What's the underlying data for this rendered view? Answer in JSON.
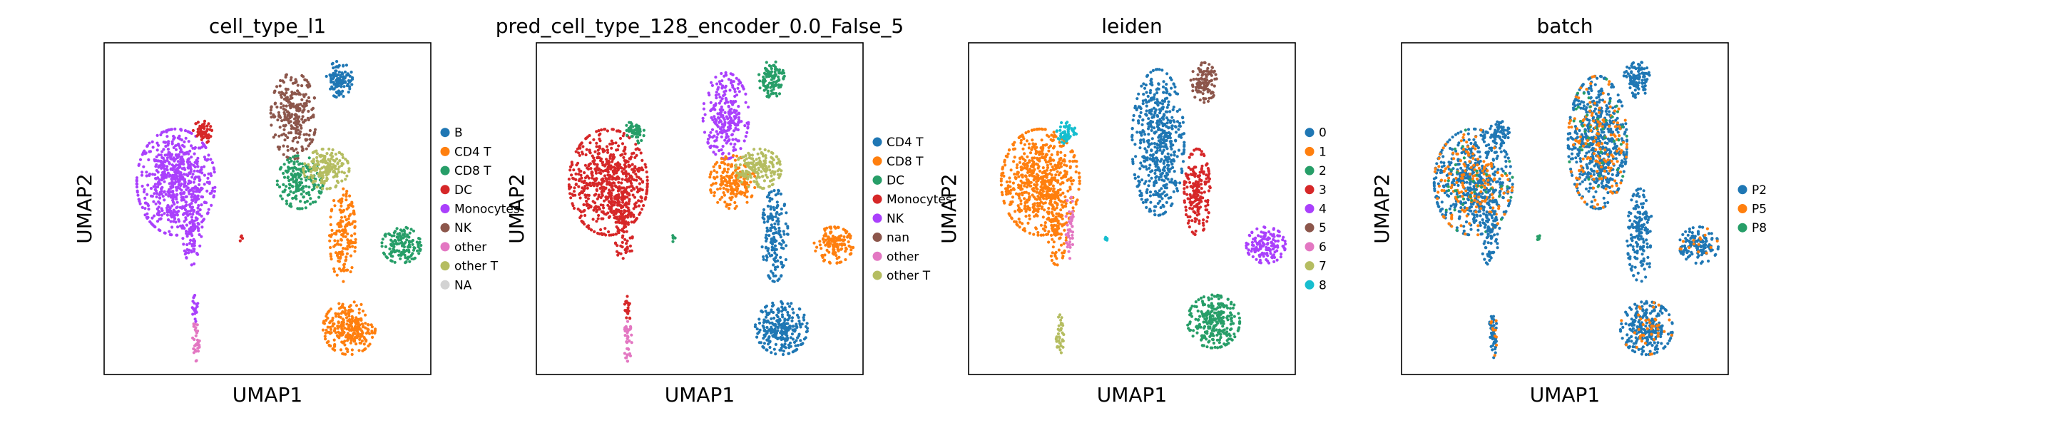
{
  "chart_data": [
    {
      "type": "scatter",
      "title": "cell_type_l1",
      "xlabel": "UMAP1",
      "ylabel": "UMAP2",
      "legend_placement": "right",
      "grid": false,
      "categories": [
        {
          "label": "B",
          "color": "#1f77b4"
        },
        {
          "label": "CD4 T",
          "color": "#ff7f0e"
        },
        {
          "label": "CD8 T",
          "color": "#279e68"
        },
        {
          "label": "DC",
          "color": "#d62728"
        },
        {
          "label": "Monocytes",
          "color": "#aa40fc"
        },
        {
          "label": "NK",
          "color": "#8c564b"
        },
        {
          "label": "other",
          "color": "#e377c2"
        },
        {
          "label": "other T",
          "color": "#b5bd61"
        },
        {
          "label": "NA",
          "color": "#d3d3d3"
        }
      ],
      "clusters": [
        {
          "c": 4,
          "x": 0.22,
          "y": 0.58,
          "rx": 0.12,
          "ry": 0.16,
          "n": 650
        },
        {
          "c": 4,
          "x": 0.27,
          "y": 0.44,
          "rx": 0.03,
          "ry": 0.11,
          "n": 90
        },
        {
          "c": 3,
          "x": 0.3,
          "y": 0.73,
          "rx": 0.03,
          "ry": 0.035,
          "n": 55
        },
        {
          "c": 5,
          "x": 0.58,
          "y": 0.78,
          "rx": 0.07,
          "ry": 0.13,
          "n": 260
        },
        {
          "c": 2,
          "x": 0.6,
          "y": 0.58,
          "rx": 0.07,
          "ry": 0.08,
          "n": 190
        },
        {
          "c": 7,
          "x": 0.68,
          "y": 0.62,
          "rx": 0.07,
          "ry": 0.06,
          "n": 170
        },
        {
          "c": 1,
          "x": 0.73,
          "y": 0.42,
          "rx": 0.04,
          "ry": 0.14,
          "n": 160
        },
        {
          "c": 1,
          "x": 0.75,
          "y": 0.14,
          "rx": 0.08,
          "ry": 0.08,
          "n": 260
        },
        {
          "c": 0,
          "x": 0.72,
          "y": 0.89,
          "rx": 0.04,
          "ry": 0.055,
          "n": 110
        },
        {
          "c": 2,
          "x": 0.91,
          "y": 0.39,
          "rx": 0.06,
          "ry": 0.055,
          "n": 140
        },
        {
          "c": 6,
          "x": 0.28,
          "y": 0.1,
          "rx": 0.012,
          "ry": 0.06,
          "n": 35
        },
        {
          "c": 4,
          "x": 0.28,
          "y": 0.2,
          "rx": 0.01,
          "ry": 0.04,
          "n": 20
        },
        {
          "c": 3,
          "x": 0.42,
          "y": 0.41,
          "rx": 0.005,
          "ry": 0.01,
          "n": 6
        }
      ]
    },
    {
      "type": "scatter",
      "title": "pred_cell_type_128_encoder_0.0_False_5",
      "xlabel": "UMAP1",
      "ylabel": "UMAP2",
      "legend_placement": "right",
      "grid": false,
      "categories": [
        {
          "label": "CD4 T",
          "color": "#1f77b4"
        },
        {
          "label": "CD8 T",
          "color": "#ff7f0e"
        },
        {
          "label": "DC",
          "color": "#279e68"
        },
        {
          "label": "Monocytes",
          "color": "#d62728"
        },
        {
          "label": "NK",
          "color": "#aa40fc"
        },
        {
          "label": "nan",
          "color": "#8c564b"
        },
        {
          "label": "other",
          "color": "#e377c2"
        },
        {
          "label": "other T",
          "color": "#b5bd61"
        }
      ],
      "clusters": [
        {
          "c": 3,
          "x": 0.22,
          "y": 0.58,
          "rx": 0.12,
          "ry": 0.16,
          "n": 650
        },
        {
          "c": 3,
          "x": 0.27,
          "y": 0.44,
          "rx": 0.03,
          "ry": 0.11,
          "n": 90
        },
        {
          "c": 2,
          "x": 0.3,
          "y": 0.73,
          "rx": 0.03,
          "ry": 0.035,
          "n": 55
        },
        {
          "c": 4,
          "x": 0.58,
          "y": 0.78,
          "rx": 0.07,
          "ry": 0.13,
          "n": 260
        },
        {
          "c": 1,
          "x": 0.6,
          "y": 0.58,
          "rx": 0.07,
          "ry": 0.08,
          "n": 190
        },
        {
          "c": 7,
          "x": 0.68,
          "y": 0.62,
          "rx": 0.07,
          "ry": 0.06,
          "n": 170
        },
        {
          "c": 0,
          "x": 0.73,
          "y": 0.42,
          "rx": 0.04,
          "ry": 0.14,
          "n": 160
        },
        {
          "c": 0,
          "x": 0.75,
          "y": 0.14,
          "rx": 0.08,
          "ry": 0.08,
          "n": 260
        },
        {
          "c": 2,
          "x": 0.72,
          "y": 0.89,
          "rx": 0.04,
          "ry": 0.055,
          "n": 110
        },
        {
          "c": 1,
          "x": 0.91,
          "y": 0.39,
          "rx": 0.06,
          "ry": 0.055,
          "n": 140
        },
        {
          "c": 6,
          "x": 0.28,
          "y": 0.1,
          "rx": 0.012,
          "ry": 0.06,
          "n": 35
        },
        {
          "c": 3,
          "x": 0.28,
          "y": 0.2,
          "rx": 0.01,
          "ry": 0.04,
          "n": 20
        },
        {
          "c": 2,
          "x": 0.42,
          "y": 0.41,
          "rx": 0.005,
          "ry": 0.01,
          "n": 6
        }
      ]
    },
    {
      "type": "scatter",
      "title": "leiden",
      "xlabel": "UMAP1",
      "ylabel": "UMAP2",
      "legend_placement": "right",
      "grid": false,
      "categories": [
        {
          "label": "0",
          "color": "#1f77b4"
        },
        {
          "label": "1",
          "color": "#ff7f0e"
        },
        {
          "label": "2",
          "color": "#279e68"
        },
        {
          "label": "3",
          "color": "#d62728"
        },
        {
          "label": "4",
          "color": "#aa40fc"
        },
        {
          "label": "5",
          "color": "#8c564b"
        },
        {
          "label": "6",
          "color": "#e377c2"
        },
        {
          "label": "7",
          "color": "#b5bd61"
        },
        {
          "label": "8",
          "color": "#17becf"
        }
      ],
      "clusters": [
        {
          "c": 1,
          "x": 0.22,
          "y": 0.58,
          "rx": 0.12,
          "ry": 0.16,
          "n": 650
        },
        {
          "c": 1,
          "x": 0.27,
          "y": 0.44,
          "rx": 0.03,
          "ry": 0.11,
          "n": 90
        },
        {
          "c": 8,
          "x": 0.3,
          "y": 0.73,
          "rx": 0.03,
          "ry": 0.035,
          "n": 55
        },
        {
          "c": 0,
          "x": 0.58,
          "y": 0.7,
          "rx": 0.08,
          "ry": 0.22,
          "n": 520
        },
        {
          "c": 3,
          "x": 0.7,
          "y": 0.55,
          "rx": 0.04,
          "ry": 0.13,
          "n": 200
        },
        {
          "c": 5,
          "x": 0.72,
          "y": 0.88,
          "rx": 0.04,
          "ry": 0.06,
          "n": 110
        },
        {
          "c": 2,
          "x": 0.75,
          "y": 0.16,
          "rx": 0.08,
          "ry": 0.08,
          "n": 260
        },
        {
          "c": 4,
          "x": 0.91,
          "y": 0.39,
          "rx": 0.06,
          "ry": 0.055,
          "n": 140
        },
        {
          "c": 6,
          "x": 0.31,
          "y": 0.45,
          "rx": 0.012,
          "ry": 0.1,
          "n": 40
        },
        {
          "c": 7,
          "x": 0.28,
          "y": 0.12,
          "rx": 0.012,
          "ry": 0.06,
          "n": 35
        },
        {
          "c": 8,
          "x": 0.42,
          "y": 0.41,
          "rx": 0.005,
          "ry": 0.01,
          "n": 6
        }
      ]
    },
    {
      "type": "scatter",
      "title": "batch",
      "xlabel": "UMAP1",
      "ylabel": "UMAP2",
      "legend_placement": "right",
      "grid": false,
      "categories": [
        {
          "label": "P2",
          "color": "#1f77b4"
        },
        {
          "label": "P5",
          "color": "#ff7f0e"
        },
        {
          "label": "P8",
          "color": "#279e68"
        }
      ],
      "clusters": [
        {
          "c": 0,
          "x": 0.22,
          "y": 0.58,
          "rx": 0.12,
          "ry": 0.16,
          "n": 500
        },
        {
          "c": 1,
          "x": 0.22,
          "y": 0.58,
          "rx": 0.12,
          "ry": 0.16,
          "n": 170
        },
        {
          "c": 2,
          "x": 0.22,
          "y": 0.58,
          "rx": 0.12,
          "ry": 0.16,
          "n": 40
        },
        {
          "c": 0,
          "x": 0.27,
          "y": 0.44,
          "rx": 0.03,
          "ry": 0.11,
          "n": 80
        },
        {
          "c": 0,
          "x": 0.3,
          "y": 0.73,
          "rx": 0.03,
          "ry": 0.035,
          "n": 50
        },
        {
          "c": 0,
          "x": 0.6,
          "y": 0.7,
          "rx": 0.09,
          "ry": 0.2,
          "n": 550
        },
        {
          "c": 1,
          "x": 0.6,
          "y": 0.7,
          "rx": 0.09,
          "ry": 0.2,
          "n": 150
        },
        {
          "c": 2,
          "x": 0.6,
          "y": 0.7,
          "rx": 0.09,
          "ry": 0.2,
          "n": 40
        },
        {
          "c": 0,
          "x": 0.73,
          "y": 0.42,
          "rx": 0.04,
          "ry": 0.14,
          "n": 160
        },
        {
          "c": 0,
          "x": 0.75,
          "y": 0.14,
          "rx": 0.08,
          "ry": 0.08,
          "n": 230
        },
        {
          "c": 1,
          "x": 0.75,
          "y": 0.14,
          "rx": 0.08,
          "ry": 0.08,
          "n": 40
        },
        {
          "c": 0,
          "x": 0.72,
          "y": 0.89,
          "rx": 0.04,
          "ry": 0.055,
          "n": 110
        },
        {
          "c": 0,
          "x": 0.91,
          "y": 0.39,
          "rx": 0.06,
          "ry": 0.055,
          "n": 130
        },
        {
          "c": 1,
          "x": 0.91,
          "y": 0.39,
          "rx": 0.06,
          "ry": 0.055,
          "n": 15
        },
        {
          "c": 0,
          "x": 0.28,
          "y": 0.12,
          "rx": 0.012,
          "ry": 0.07,
          "n": 45
        },
        {
          "c": 1,
          "x": 0.28,
          "y": 0.12,
          "rx": 0.012,
          "ry": 0.07,
          "n": 10
        },
        {
          "c": 2,
          "x": 0.42,
          "y": 0.41,
          "rx": 0.005,
          "ry": 0.01,
          "n": 6
        }
      ]
    }
  ]
}
